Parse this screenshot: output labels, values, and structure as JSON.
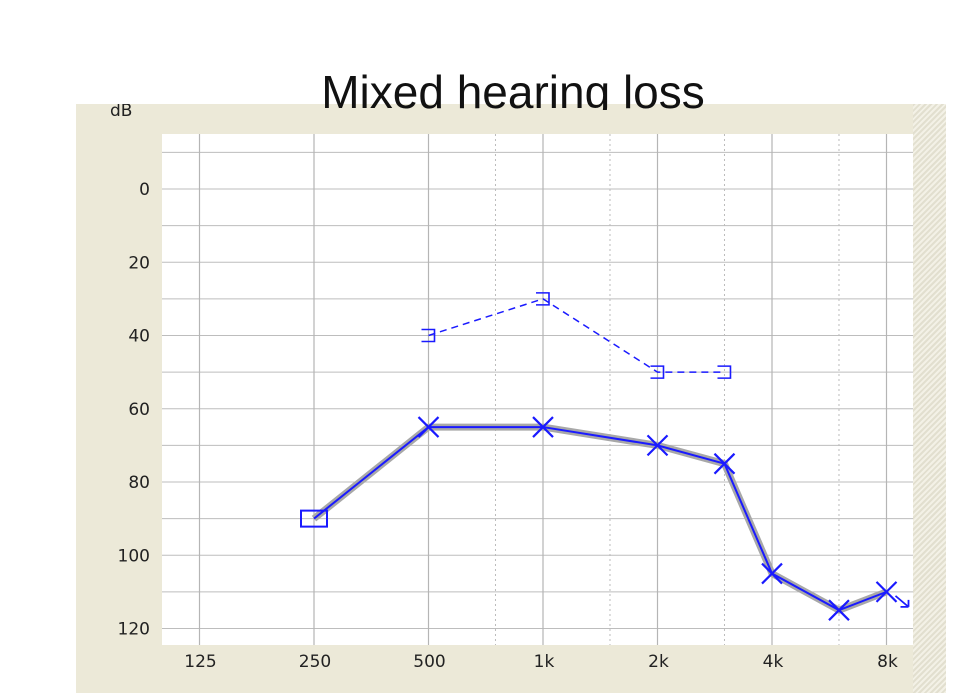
{
  "chart_data": {
    "type": "line",
    "title": "Mixed hearing loss",
    "ylabel": "dB",
    "xlabel": "",
    "x_ticks": [
      "125",
      "250",
      "500",
      "1k",
      "2k",
      "4k",
      "8k"
    ],
    "x_scale": "log (octaves)",
    "y_ticks": [
      0,
      20,
      40,
      60,
      80,
      100,
      120
    ],
    "ylim": [
      -15,
      122
    ],
    "y_inverted": true,
    "grid": true,
    "series": [
      {
        "style": "solid",
        "color": "#1a1aff",
        "points": [
          {
            "x": 250,
            "y": 90,
            "marker": "square"
          },
          {
            "x": 500,
            "y": 65,
            "marker": "x"
          },
          {
            "x": 1000,
            "y": 65,
            "marker": "x"
          },
          {
            "x": 2000,
            "y": 70,
            "marker": "x"
          },
          {
            "x": 3000,
            "y": 75,
            "marker": "x"
          },
          {
            "x": 4000,
            "y": 105,
            "marker": "x"
          },
          {
            "x": 6000,
            "y": 115,
            "marker": "x"
          },
          {
            "x": 8000,
            "y": 110,
            "marker": "x-arrow"
          }
        ]
      },
      {
        "style": "dashed",
        "color": "#1a1aff",
        "points": [
          {
            "x": 500,
            "y": 40,
            "marker": "bracket"
          },
          {
            "x": 1000,
            "y": 30,
            "marker": "bracket"
          },
          {
            "x": 2000,
            "y": 50,
            "marker": "bracket"
          },
          {
            "x": 3000,
            "y": 50,
            "marker": "bracket"
          }
        ]
      }
    ]
  }
}
